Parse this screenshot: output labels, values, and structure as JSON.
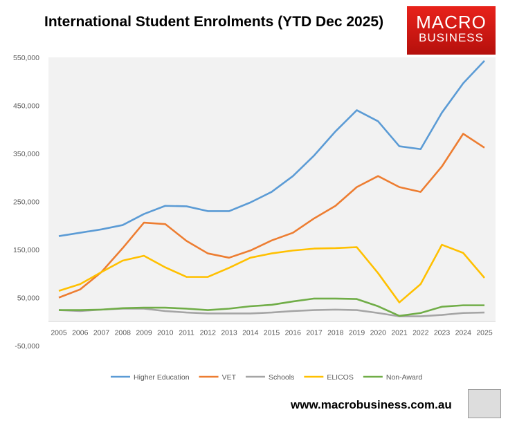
{
  "chart_data": {
    "type": "line",
    "title": "International Student Enrolments (YTD Dec 2025)",
    "categories": [
      "2005",
      "2006",
      "2007",
      "2008",
      "2009",
      "2010",
      "2011",
      "2012",
      "2013",
      "2014",
      "2015",
      "2016",
      "2017",
      "2018",
      "2019",
      "2020",
      "2021",
      "2022",
      "2023",
      "2024",
      "2025"
    ],
    "ylim": [
      -50000,
      550000
    ],
    "yticks": [
      -50000,
      50000,
      150000,
      250000,
      350000,
      450000,
      550000
    ],
    "ytick_labels": [
      "-50,000",
      "50,000",
      "150,000",
      "250,000",
      "350,000",
      "450,000",
      "550,000"
    ],
    "grid": false,
    "legend_position": "bottom",
    "series": [
      {
        "name": "Higher Education",
        "color": "#5b9bd5",
        "values": [
          178000,
          185000,
          192000,
          201000,
          224000,
          241000,
          240000,
          230000,
          230000,
          248000,
          270000,
          303000,
          346000,
          396000,
          440000,
          417000,
          365000,
          359000,
          435000,
          496000,
          543000
        ]
      },
      {
        "name": "VET",
        "color": "#ed7d31",
        "values": [
          50000,
          67000,
          103000,
          153000,
          206000,
          203000,
          168000,
          142000,
          133000,
          148000,
          169000,
          185000,
          215000,
          241000,
          280000,
          303000,
          280000,
          270000,
          323000,
          391000,
          362000
        ]
      },
      {
        "name": "Schools",
        "color": "#a5a5a5",
        "values": [
          24000,
          22000,
          25000,
          27000,
          27000,
          22000,
          19000,
          17000,
          17000,
          17000,
          19000,
          22000,
          24000,
          25000,
          24000,
          18000,
          11000,
          11000,
          14000,
          18000,
          19000
        ]
      },
      {
        "name": "ELICOS",
        "color": "#ffc000",
        "values": [
          64000,
          78000,
          103000,
          127000,
          137000,
          113000,
          93000,
          93000,
          112000,
          133000,
          142000,
          148000,
          152000,
          153000,
          155000,
          101000,
          40000,
          78000,
          160000,
          143000,
          91000
        ]
      },
      {
        "name": "Non-Award",
        "color": "#70ad47",
        "values": [
          24000,
          24000,
          25000,
          28000,
          29000,
          29000,
          27000,
          24000,
          27000,
          32000,
          35000,
          42000,
          48000,
          48000,
          47000,
          32000,
          12000,
          18000,
          31000,
          34000,
          34000
        ]
      }
    ]
  },
  "logo": {
    "line1": "MACRO",
    "line2": "BUSINESS"
  },
  "footer": {
    "url": "www.macrobusiness.com.au"
  }
}
